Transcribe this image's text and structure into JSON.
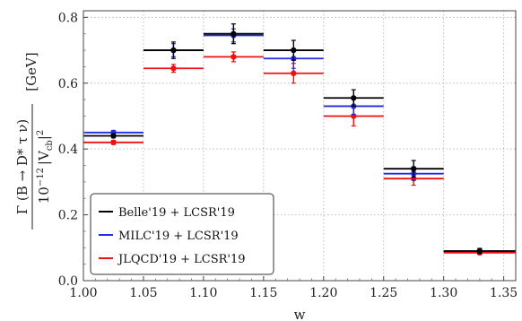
{
  "chart_data": {
    "type": "scatter",
    "xlabel": "w",
    "ylabel": "Γ (B → D* τ ν) / 10^-12 |V_cb|^2 [GeV]",
    "ylabel_parts": {
      "numerator": "Γ (B → D* τ ν)",
      "denominator_prefix": "10",
      "denominator_exp": "−12",
      "denominator_vcb": "|V",
      "denominator_sub": "cb",
      "denominator_tail": "|",
      "denominator_sq": "2",
      "unit": "[GeV]"
    },
    "xlim": [
      1.0,
      1.36
    ],
    "ylim": [
      0.0,
      0.82
    ],
    "xticks": [
      "1.00",
      "1.05",
      "1.10",
      "1.15",
      "1.20",
      "1.25",
      "1.30",
      "1.35"
    ],
    "xtick_values": [
      1.0,
      1.05,
      1.1,
      1.15,
      1.2,
      1.25,
      1.3,
      1.35
    ],
    "yticks": [
      "0.0",
      "0.2",
      "0.4",
      "0.6",
      "0.8"
    ],
    "ytick_values": [
      0.0,
      0.2,
      0.4,
      0.6,
      0.8
    ],
    "grid": true,
    "legend_position": "bottom-left",
    "bins": [
      {
        "xmin": 1.0,
        "xmax": 1.05
      },
      {
        "xmin": 1.05,
        "xmax": 1.1
      },
      {
        "xmin": 1.1,
        "xmax": 1.15
      },
      {
        "xmin": 1.15,
        "xmax": 1.2
      },
      {
        "xmin": 1.2,
        "xmax": 1.25
      },
      {
        "xmin": 1.25,
        "xmax": 1.3
      },
      {
        "xmin": 1.3,
        "xmax": 1.36
      }
    ],
    "series": [
      {
        "name": "Belle'19 + LCSR'19",
        "color": "#000000",
        "x": [
          1.025,
          1.075,
          1.125,
          1.175,
          1.225,
          1.275,
          1.33
        ],
        "y": [
          0.44,
          0.7,
          0.75,
          0.7,
          0.555,
          0.34,
          0.09
        ],
        "err": [
          0.006,
          0.025,
          0.03,
          0.03,
          0.025,
          0.025,
          0.008
        ]
      },
      {
        "name": "MILC'19 + LCSR'19",
        "color": "#1f2ee0",
        "x": [
          1.025,
          1.075,
          1.125,
          1.175,
          1.225,
          1.275,
          1.33
        ],
        "y": [
          0.45,
          0.7,
          0.745,
          0.675,
          0.53,
          0.325,
          0.09
        ],
        "err": [
          0.006,
          0.02,
          0.02,
          0.03,
          0.025,
          0.02,
          0.006
        ]
      },
      {
        "name": "JLQCD'19 + LCSR'19",
        "color": "#ee1111",
        "x": [
          1.025,
          1.075,
          1.125,
          1.175,
          1.225,
          1.275,
          1.33
        ],
        "y": [
          0.42,
          0.645,
          0.68,
          0.63,
          0.5,
          0.31,
          0.085
        ],
        "err": [
          0.006,
          0.012,
          0.015,
          0.03,
          0.03,
          0.02,
          0.006
        ]
      }
    ]
  }
}
